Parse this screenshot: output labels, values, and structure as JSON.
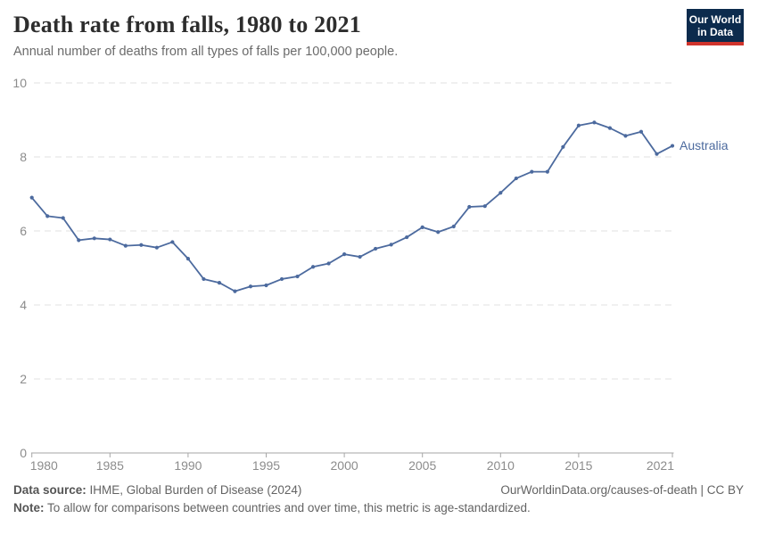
{
  "header": {
    "title": "Death rate from falls, 1980 to 2021",
    "subtitle": "Annual number of deaths from all types of falls per 100,000 people.",
    "logo": {
      "line1": "Our World",
      "line2": "in Data",
      "bg_color": "#0c2b4d",
      "bar_color": "#d0342c"
    }
  },
  "chart_data": {
    "type": "line",
    "title": "Death rate from falls, 1980 to 2021",
    "xlabel": "",
    "ylabel": "",
    "grid": "horizontal dashed",
    "legend_position": "end-of-line label",
    "ylim": [
      0,
      10
    ],
    "yticks": [
      0,
      2,
      4,
      6,
      8,
      10
    ],
    "xticks": [
      1980,
      1985,
      1990,
      1995,
      2000,
      2005,
      2010,
      2015,
      2021
    ],
    "x": [
      1980,
      1981,
      1982,
      1983,
      1984,
      1985,
      1986,
      1987,
      1988,
      1989,
      1990,
      1991,
      1992,
      1993,
      1994,
      1995,
      1996,
      1997,
      1998,
      1999,
      2000,
      2001,
      2002,
      2003,
      2004,
      2005,
      2006,
      2007,
      2008,
      2009,
      2010,
      2011,
      2012,
      2013,
      2014,
      2015,
      2016,
      2017,
      2018,
      2019,
      2020,
      2021
    ],
    "series": [
      {
        "name": "Australia",
        "color": "#4c6a9e",
        "values": [
          6.9,
          6.4,
          6.35,
          5.75,
          5.8,
          5.77,
          5.6,
          5.62,
          5.55,
          5.7,
          5.25,
          4.7,
          4.6,
          4.37,
          4.5,
          4.53,
          4.7,
          4.77,
          5.03,
          5.12,
          5.37,
          5.3,
          5.52,
          5.63,
          5.83,
          6.1,
          5.97,
          6.12,
          6.65,
          6.67,
          7.03,
          7.42,
          7.6,
          7.6,
          8.27,
          8.85,
          8.93,
          8.78,
          8.57,
          8.68,
          8.08,
          8.3
        ]
      }
    ],
    "axis_colors": {
      "tick_label": "#8c8c8c",
      "gridline": "#e1e1e1",
      "axis_line": "#a6a6a6"
    }
  },
  "footer": {
    "source_label": "Data source:",
    "source_text": " IHME, Global Burden of Disease (2024)",
    "link": "OurWorldinData.org/causes-of-death | CC BY",
    "note_label": "Note:",
    "note_text": " To allow for comparisons between countries and over time, this metric is age-standardized."
  }
}
